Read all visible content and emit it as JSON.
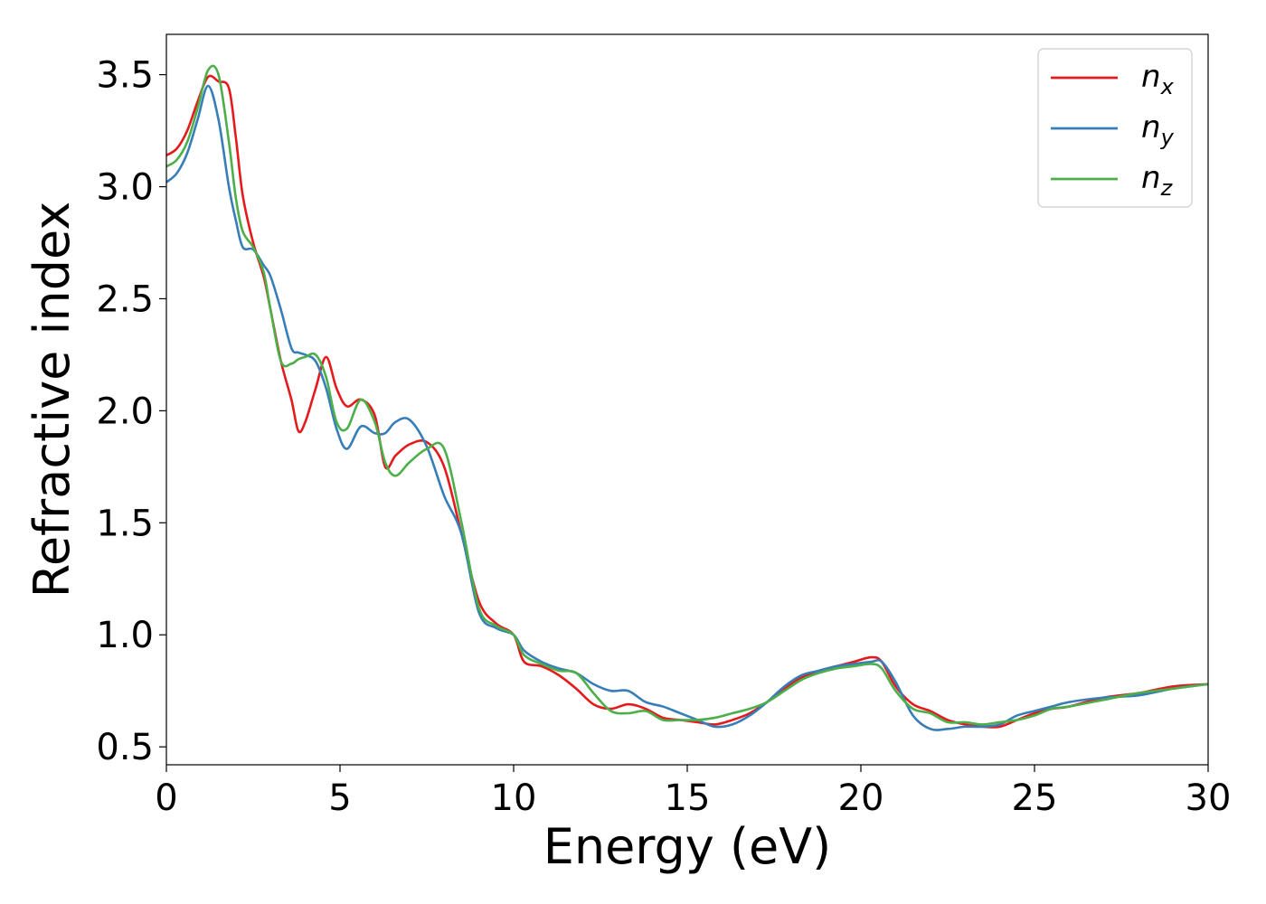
{
  "chart_data": {
    "type": "line",
    "xlabel": "Energy (eV)",
    "ylabel": "Refractive index",
    "xlim": [
      0,
      30
    ],
    "ylim": [
      0.42,
      3.68
    ],
    "xticks": [
      0,
      5,
      10,
      15,
      20,
      25,
      30
    ],
    "yticks": [
      0.5,
      1.0,
      1.5,
      2.0,
      2.5,
      3.0,
      3.5
    ],
    "xtick_labels": [
      "0",
      "5",
      "10",
      "15",
      "20",
      "25",
      "30"
    ],
    "ytick_labels": [
      "0.5",
      "1.0",
      "1.5",
      "2.0",
      "2.5",
      "3.0",
      "3.5"
    ],
    "grid": false,
    "legend_position": "top-right",
    "series": [
      {
        "name": "n",
        "subscript": "x",
        "color": "#e41a1c",
        "x": [
          0,
          0.3,
          0.6,
          0.9,
          1.2,
          1.5,
          1.8,
          2.0,
          2.2,
          2.5,
          2.8,
          3.0,
          3.3,
          3.6,
          3.8,
          4.0,
          4.3,
          4.6,
          4.9,
          5.2,
          5.6,
          6.0,
          6.3,
          6.6,
          7.0,
          7.5,
          8.0,
          8.5,
          9.0,
          9.5,
          10.0,
          10.3,
          10.8,
          11.3,
          11.8,
          12.3,
          12.8,
          13.3,
          13.8,
          14.3,
          14.8,
          15.3,
          15.8,
          16.3,
          16.8,
          17.3,
          17.8,
          18.3,
          18.8,
          19.3,
          19.8,
          20.3,
          20.6,
          21.0,
          21.5,
          22.0,
          22.5,
          23.0,
          23.5,
          24.0,
          24.5,
          25.0,
          25.5,
          26.0,
          27.0,
          28.0,
          29.0,
          30.0
        ],
        "y": [
          3.14,
          3.17,
          3.25,
          3.38,
          3.49,
          3.47,
          3.44,
          3.22,
          2.96,
          2.75,
          2.6,
          2.45,
          2.22,
          2.05,
          1.91,
          1.95,
          2.1,
          2.24,
          2.1,
          2.02,
          2.05,
          1.98,
          1.75,
          1.8,
          1.85,
          1.86,
          1.75,
          1.45,
          1.15,
          1.05,
          1.0,
          0.88,
          0.86,
          0.82,
          0.76,
          0.69,
          0.67,
          0.69,
          0.67,
          0.63,
          0.62,
          0.61,
          0.6,
          0.62,
          0.65,
          0.7,
          0.76,
          0.81,
          0.84,
          0.86,
          0.88,
          0.9,
          0.88,
          0.77,
          0.69,
          0.66,
          0.62,
          0.6,
          0.59,
          0.59,
          0.62,
          0.65,
          0.67,
          0.68,
          0.72,
          0.74,
          0.77,
          0.78
        ]
      },
      {
        "name": "n",
        "subscript": "y",
        "color": "#377eb8",
        "x": [
          0,
          0.3,
          0.6,
          0.9,
          1.2,
          1.5,
          1.8,
          2.0,
          2.2,
          2.5,
          2.8,
          3.0,
          3.3,
          3.6,
          3.8,
          4.0,
          4.3,
          4.6,
          4.9,
          5.2,
          5.6,
          6.0,
          6.3,
          6.6,
          7.0,
          7.5,
          8.0,
          8.5,
          9.0,
          9.5,
          10.0,
          10.3,
          10.8,
          11.3,
          11.8,
          12.3,
          12.8,
          13.3,
          13.8,
          14.3,
          14.8,
          15.3,
          15.8,
          16.3,
          16.8,
          17.3,
          17.8,
          18.3,
          18.8,
          19.3,
          19.8,
          20.3,
          20.6,
          21.0,
          21.5,
          22.0,
          22.5,
          23.0,
          23.5,
          24.0,
          24.5,
          25.0,
          25.5,
          26.0,
          27.0,
          28.0,
          29.0,
          30.0
        ],
        "y": [
          3.02,
          3.06,
          3.15,
          3.3,
          3.45,
          3.3,
          3.0,
          2.85,
          2.73,
          2.72,
          2.65,
          2.6,
          2.45,
          2.28,
          2.26,
          2.25,
          2.22,
          2.1,
          1.92,
          1.83,
          1.93,
          1.9,
          1.9,
          1.95,
          1.96,
          1.84,
          1.62,
          1.45,
          1.1,
          1.03,
          1.0,
          0.93,
          0.88,
          0.85,
          0.83,
          0.78,
          0.75,
          0.75,
          0.7,
          0.68,
          0.65,
          0.62,
          0.59,
          0.6,
          0.64,
          0.7,
          0.77,
          0.82,
          0.84,
          0.86,
          0.87,
          0.88,
          0.88,
          0.79,
          0.64,
          0.58,
          0.58,
          0.59,
          0.59,
          0.6,
          0.64,
          0.66,
          0.68,
          0.7,
          0.72,
          0.73,
          0.76,
          0.78
        ]
      },
      {
        "name": "n",
        "subscript": "z",
        "color": "#4daf4a",
        "x": [
          0,
          0.3,
          0.6,
          0.9,
          1.2,
          1.5,
          1.8,
          2.0,
          2.2,
          2.5,
          2.8,
          3.0,
          3.3,
          3.6,
          3.8,
          4.0,
          4.3,
          4.6,
          4.9,
          5.2,
          5.6,
          6.0,
          6.3,
          6.6,
          7.0,
          7.5,
          8.0,
          8.5,
          9.0,
          9.5,
          10.0,
          10.3,
          10.8,
          11.3,
          11.8,
          12.3,
          12.8,
          13.3,
          13.8,
          14.3,
          14.8,
          15.3,
          15.8,
          16.3,
          16.8,
          17.3,
          17.8,
          18.3,
          18.8,
          19.3,
          19.8,
          20.3,
          20.6,
          21.0,
          21.5,
          22.0,
          22.5,
          23.0,
          23.5,
          24.0,
          24.5,
          25.0,
          25.5,
          26.0,
          27.0,
          28.0,
          29.0,
          30.0
        ],
        "y": [
          3.09,
          3.12,
          3.2,
          3.35,
          3.52,
          3.5,
          3.2,
          2.95,
          2.8,
          2.73,
          2.62,
          2.45,
          2.22,
          2.21,
          2.23,
          2.24,
          2.25,
          2.15,
          1.95,
          1.92,
          2.05,
          1.95,
          1.77,
          1.71,
          1.77,
          1.83,
          1.83,
          1.5,
          1.12,
          1.04,
          1.0,
          0.91,
          0.87,
          0.84,
          0.83,
          0.74,
          0.66,
          0.65,
          0.66,
          0.62,
          0.62,
          0.62,
          0.63,
          0.65,
          0.67,
          0.7,
          0.75,
          0.8,
          0.83,
          0.85,
          0.86,
          0.87,
          0.85,
          0.75,
          0.67,
          0.65,
          0.61,
          0.61,
          0.6,
          0.61,
          0.62,
          0.64,
          0.67,
          0.68,
          0.71,
          0.74,
          0.76,
          0.78
        ]
      }
    ]
  }
}
